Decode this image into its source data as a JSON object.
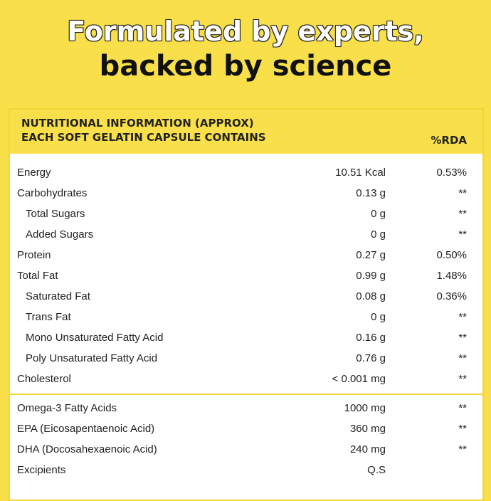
{
  "header": {
    "line1": "Formulated by experts,",
    "line2": "backed by science"
  },
  "table": {
    "title1": "NUTRITIONAL INFORMATION (APPROX)",
    "title2": "EACH SOFT GELATIN CAPSULE CONTAINS",
    "rda_header": "%RDA",
    "rows": [
      [
        "Energy",
        "10.51 Kcal",
        "0.53%"
      ],
      [
        "Carbohydrates",
        "0.13 g",
        "**"
      ],
      [
        "Total Sugars",
        "0 g",
        "**"
      ],
      [
        "Added Sugars",
        "0 g",
        "**"
      ],
      [
        "Protein",
        "0.27 g",
        "0.50%"
      ],
      [
        "Total Fat",
        "0.99 g",
        "1.48%"
      ],
      [
        "Saturated Fat",
        "0.08 g",
        "0.36%"
      ],
      [
        "Trans Fat",
        "0 g",
        "**"
      ],
      [
        "Mono Unsaturated Fatty Acid",
        "0.16 g",
        "**"
      ],
      [
        "Poly Unsaturated Fatty Acid",
        "0.76 g",
        "**"
      ],
      [
        "Cholesterol",
        "< 0.001 mg",
        "**"
      ]
    ],
    "rows2": [
      [
        "Omega-3 Fatty Acids",
        "1000 mg",
        "**"
      ],
      [
        "EPA (Eicosapentaenoic Acid)",
        "360 mg",
        "**"
      ],
      [
        "DHA (Docosahexaenoic Acid)",
        "240 mg",
        "**"
      ],
      [
        "Excipients",
        "Q.S",
        ""
      ]
    ]
  }
}
